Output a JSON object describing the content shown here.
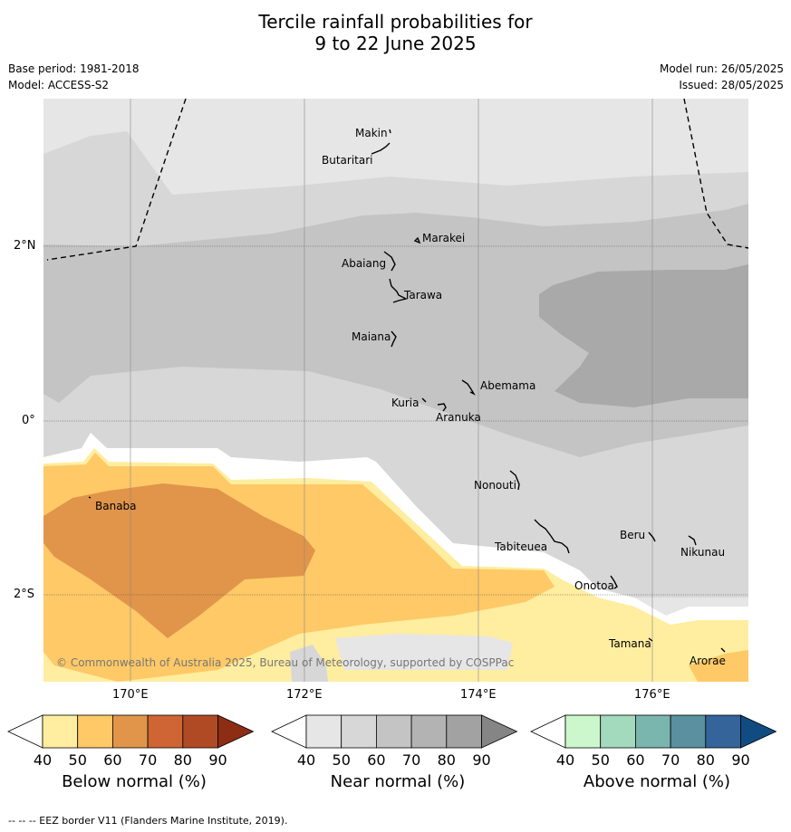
{
  "title_line1": "Tercile rainfall probabilities for",
  "title_line2": "9 to 22 June 2025",
  "base_period": "Base period: 1981-2018",
  "model": "Model: ACCESS-S2",
  "model_run": "Model run: 26/05/2025",
  "issued": "Issued: 28/05/2025",
  "map": {
    "lat_labels": [
      "2°N",
      "0°",
      "2°S"
    ],
    "lon_labels": [
      "170°E",
      "172°E",
      "174°E",
      "176°E"
    ],
    "copyright": "© Commonwealth of Australia 2025, Bureau of Meteorology, supported by COSPPac",
    "islands": [
      {
        "name": "Makin"
      },
      {
        "name": "Butaritari"
      },
      {
        "name": "Marakei"
      },
      {
        "name": "Abaiang"
      },
      {
        "name": "Tarawa"
      },
      {
        "name": "Maiana"
      },
      {
        "name": "Abemama"
      },
      {
        "name": "Kuria"
      },
      {
        "name": "Aranuka"
      },
      {
        "name": "Nonouti"
      },
      {
        "name": "Banaba"
      },
      {
        "name": "Beru"
      },
      {
        "name": "Tabiteuea"
      },
      {
        "name": "Nikunau"
      },
      {
        "name": "Onotoa"
      },
      {
        "name": "Tamana"
      },
      {
        "name": "Arorae"
      }
    ]
  },
  "colorbars": [
    {
      "label": "Below normal (%)",
      "ticks": [
        "40",
        "50",
        "60",
        "70",
        "80",
        "90"
      ],
      "colors": [
        "#ffeda0",
        "#fec966",
        "#e0954a",
        "#cf6534",
        "#b04a25",
        "#8c2d14"
      ]
    },
    {
      "label": "Near normal (%)",
      "ticks": [
        "40",
        "50",
        "60",
        "70",
        "80",
        "90"
      ],
      "colors": [
        "#e6e6e6",
        "#d7d7d7",
        "#c4c4c4",
        "#b3b3b3",
        "#a2a2a2",
        "#858585"
      ]
    },
    {
      "label": "Above normal (%)",
      "ticks": [
        "40",
        "50",
        "60",
        "70",
        "80",
        "90"
      ],
      "colors": [
        "#ccf7cc",
        "#a3d9bc",
        "#7ab5ae",
        "#5a909f",
        "#34649a",
        "#104c82"
      ]
    }
  ],
  "footnote": "--  --  -- EEZ border V11 (Flanders Marine Institute, 2019)."
}
